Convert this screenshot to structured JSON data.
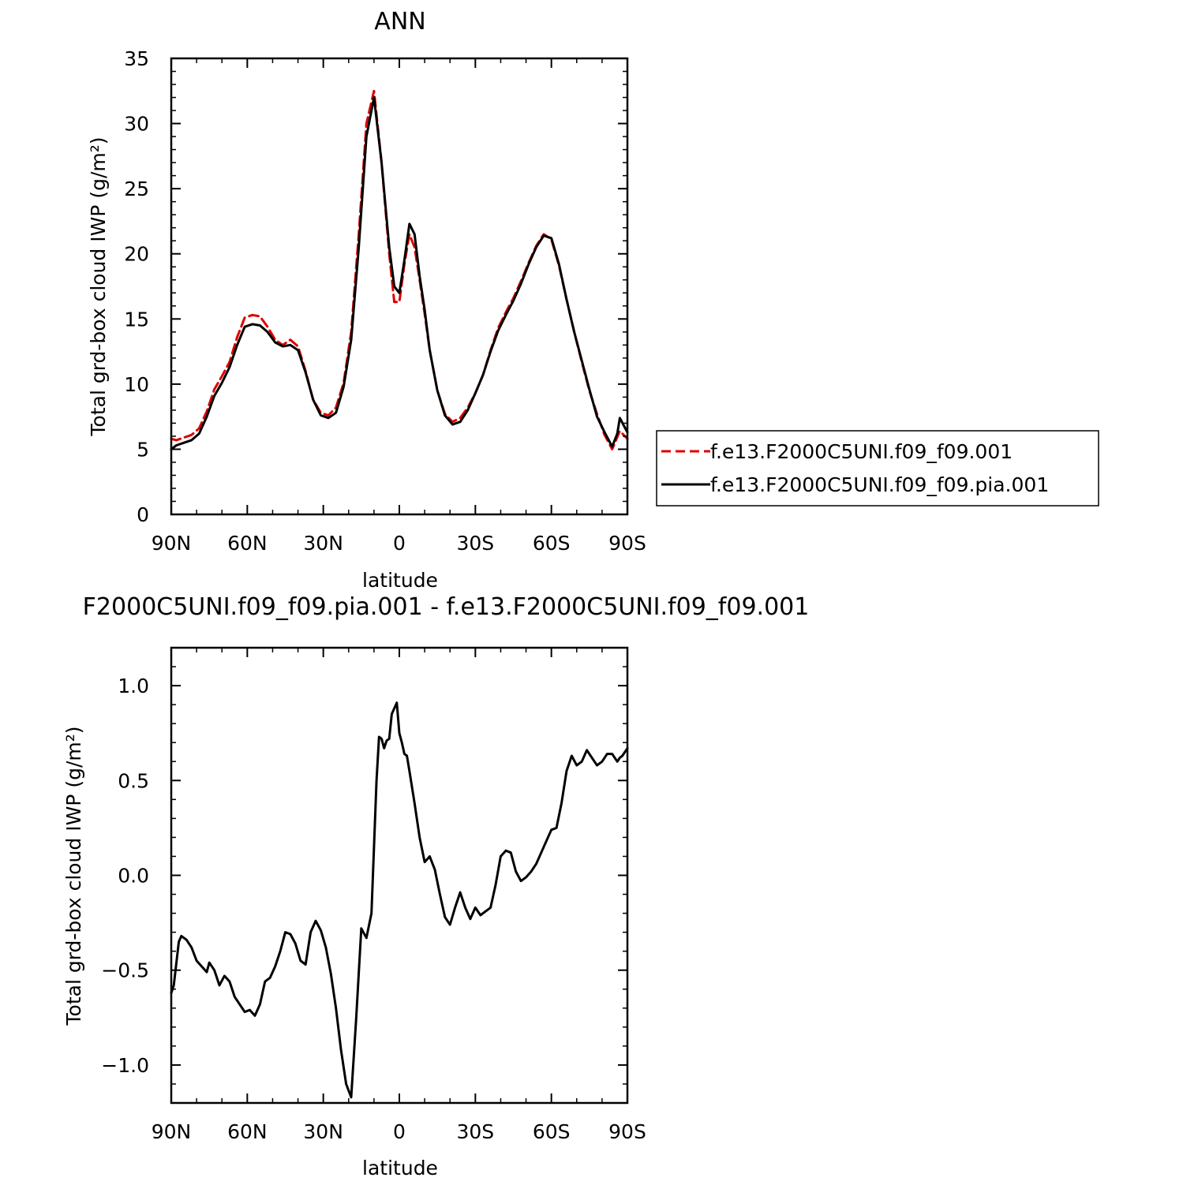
{
  "chart_data": [
    {
      "type": "line",
      "title": "ANN",
      "xlabel": "latitude",
      "ylabel": "Total grd-box cloud IWP (g/m²)",
      "xlim": [
        90,
        -90
      ],
      "ylim": [
        0,
        35
      ],
      "x_ticks": [
        {
          "value": 90,
          "label": "90N"
        },
        {
          "value": 60,
          "label": "60N"
        },
        {
          "value": 30,
          "label": "30N"
        },
        {
          "value": 0,
          "label": "0"
        },
        {
          "value": -30,
          "label": "30S"
        },
        {
          "value": -60,
          "label": "60S"
        },
        {
          "value": -90,
          "label": "90S"
        }
      ],
      "y_ticks": [
        {
          "value": 0,
          "label": "0"
        },
        {
          "value": 5,
          "label": "5"
        },
        {
          "value": 10,
          "label": "10"
        },
        {
          "value": 15,
          "label": "15"
        },
        {
          "value": 20,
          "label": "20"
        },
        {
          "value": 25,
          "label": "25"
        },
        {
          "value": 30,
          "label": "30"
        },
        {
          "value": 35,
          "label": "35"
        }
      ],
      "grid": false,
      "legend_position": "right",
      "series": [
        {
          "name": "f.e13.F2000C5UNI.f09_f09.001",
          "color": "#dd0000",
          "dash": "dashed",
          "x": [
            90,
            88,
            85,
            82,
            79,
            76,
            73,
            70,
            67,
            64,
            61,
            58,
            55,
            52,
            49,
            46,
            43,
            40,
            37,
            34,
            31,
            28,
            25,
            22,
            19,
            16,
            13,
            10,
            7,
            4,
            2,
            0,
            -2,
            -4,
            -6,
            -8,
            -10,
            -12,
            -15,
            -18,
            -21,
            -24,
            -27,
            -30,
            -33,
            -36,
            -39,
            -42,
            -45,
            -48,
            -51,
            -54,
            -57,
            -60,
            -63,
            -66,
            -69,
            -72,
            -75,
            -78,
            -81,
            -84,
            -87,
            -90
          ],
          "y": [
            5.8,
            5.7,
            5.9,
            6.1,
            6.6,
            7.9,
            9.6,
            10.6,
            11.7,
            13.6,
            15.1,
            15.3,
            15.2,
            14.4,
            13.4,
            13.0,
            13.4,
            12.9,
            11.0,
            8.8,
            7.8,
            7.6,
            8.2,
            10.1,
            14.0,
            21.5,
            30.0,
            32.5,
            27.0,
            20.0,
            16.3,
            16.3,
            19.2,
            21.5,
            20.5,
            18.0,
            15.4,
            12.6,
            9.5,
            7.7,
            7.1,
            7.4,
            8.2,
            9.3,
            10.7,
            12.6,
            14.3,
            15.5,
            16.6,
            17.9,
            19.3,
            20.6,
            21.5,
            21.1,
            19.1,
            16.5,
            14.0,
            11.7,
            9.5,
            7.7,
            6.1,
            5.0,
            6.4,
            5.8
          ]
        },
        {
          "name": "f.e13.F2000C5UNI.f09_f09.pia.001",
          "color": "#000000",
          "dash": "solid",
          "x": [
            90,
            88,
            85,
            82,
            79,
            76,
            73,
            70,
            67,
            64,
            61,
            58,
            55,
            52,
            49,
            46,
            43,
            40,
            37,
            34,
            31,
            28,
            25,
            22,
            19,
            16,
            13,
            10,
            7,
            4,
            2,
            0,
            -2,
            -4,
            -6,
            -8,
            -10,
            -12,
            -15,
            -18,
            -21,
            -24,
            -27,
            -30,
            -33,
            -36,
            -39,
            -42,
            -45,
            -48,
            -51,
            -54,
            -57,
            -60,
            -63,
            -66,
            -69,
            -72,
            -75,
            -78,
            -81,
            -84,
            -86,
            -87,
            -90
          ],
          "y": [
            5.0,
            5.3,
            5.5,
            5.7,
            6.2,
            7.5,
            9.1,
            10.1,
            11.3,
            13.0,
            14.4,
            14.6,
            14.5,
            14.0,
            13.2,
            12.9,
            13.0,
            12.6,
            10.9,
            8.8,
            7.6,
            7.4,
            7.8,
            9.8,
            13.4,
            20.5,
            29.0,
            32.0,
            27.0,
            20.5,
            17.5,
            17.0,
            19.5,
            22.3,
            21.5,
            18.3,
            15.7,
            12.6,
            9.5,
            7.6,
            6.9,
            7.1,
            8.0,
            9.3,
            10.7,
            12.5,
            14.1,
            15.3,
            16.4,
            17.7,
            19.2,
            20.5,
            21.4,
            21.2,
            19.2,
            16.5,
            14.0,
            11.8,
            9.6,
            7.5,
            6.3,
            5.2,
            6.2,
            7.4,
            6.3
          ]
        }
      ]
    },
    {
      "type": "line",
      "title": "F2000C5UNI.f09_f09.pia.001  -  f.e13.F2000C5UNI.f09_f09.001",
      "xlabel": "latitude",
      "ylabel": "Total grd-box cloud IWP (g/m²)",
      "xlim": [
        90,
        -90
      ],
      "ylim": [
        -1.2,
        1.2
      ],
      "x_ticks": [
        {
          "value": 90,
          "label": "90N"
        },
        {
          "value": 60,
          "label": "60N"
        },
        {
          "value": 30,
          "label": "30N"
        },
        {
          "value": 0,
          "label": "0"
        },
        {
          "value": -30,
          "label": "30S"
        },
        {
          "value": -60,
          "label": "60S"
        },
        {
          "value": -90,
          "label": "90S"
        }
      ],
      "y_ticks": [
        {
          "value": -1.0,
          "label": "−1.0"
        },
        {
          "value": -0.5,
          "label": "−0.5"
        },
        {
          "value": 0.0,
          "label": "0.0"
        },
        {
          "value": 0.5,
          "label": "0.5"
        },
        {
          "value": 1.0,
          "label": "1.0"
        }
      ],
      "grid": false,
      "series": [
        {
          "color": "#000000",
          "dash": "solid",
          "x": [
            90,
            89,
            87,
            86,
            84,
            82,
            80,
            78,
            76,
            75,
            73,
            71,
            69,
            67,
            65,
            63,
            61,
            59,
            57,
            55,
            53,
            51,
            49,
            47,
            45,
            43,
            41,
            39,
            37,
            35,
            33,
            31,
            29,
            27,
            25,
            23,
            21,
            19,
            17,
            15,
            13,
            11,
            9,
            8,
            7,
            6,
            5,
            4,
            3,
            1,
            0,
            -1,
            -2,
            -3,
            -4,
            -6,
            -8,
            -10,
            -12,
            -14,
            -16,
            -18,
            -20,
            -22,
            -24,
            -26,
            -28,
            -30,
            -32,
            -34,
            -36,
            -38,
            -40,
            -42,
            -44,
            -46,
            -48,
            -50,
            -52,
            -54,
            -56,
            -58,
            -60,
            -62,
            -64,
            -66,
            -68,
            -70,
            -72,
            -74,
            -76,
            -78,
            -80,
            -82,
            -84,
            -85,
            -86,
            -87,
            -88,
            -90
          ],
          "y": [
            -0.62,
            -0.58,
            -0.35,
            -0.32,
            -0.34,
            -0.38,
            -0.45,
            -0.48,
            -0.51,
            -0.46,
            -0.5,
            -0.58,
            -0.53,
            -0.56,
            -0.64,
            -0.68,
            -0.72,
            -0.71,
            -0.74,
            -0.68,
            -0.56,
            -0.54,
            -0.48,
            -0.4,
            -0.3,
            -0.31,
            -0.36,
            -0.45,
            -0.47,
            -0.3,
            -0.24,
            -0.29,
            -0.38,
            -0.52,
            -0.7,
            -0.92,
            -1.1,
            -1.17,
            -0.75,
            -0.28,
            -0.33,
            -0.2,
            0.5,
            0.73,
            0.72,
            0.67,
            0.71,
            0.72,
            0.85,
            0.91,
            0.75,
            0.7,
            0.64,
            0.63,
            0.55,
            0.38,
            0.2,
            0.07,
            0.1,
            0.03,
            -0.1,
            -0.22,
            -0.26,
            -0.17,
            -0.09,
            -0.17,
            -0.23,
            -0.17,
            -0.21,
            -0.19,
            -0.17,
            -0.05,
            0.1,
            0.13,
            0.12,
            0.02,
            -0.03,
            -0.01,
            0.02,
            0.06,
            0.12,
            0.18,
            0.24,
            0.25,
            0.38,
            0.55,
            0.63,
            0.58,
            0.6,
            0.66,
            0.62,
            0.58,
            0.6,
            0.64,
            0.64,
            0.62,
            0.6,
            0.62,
            0.63,
            0.67
          ]
        }
      ]
    }
  ]
}
